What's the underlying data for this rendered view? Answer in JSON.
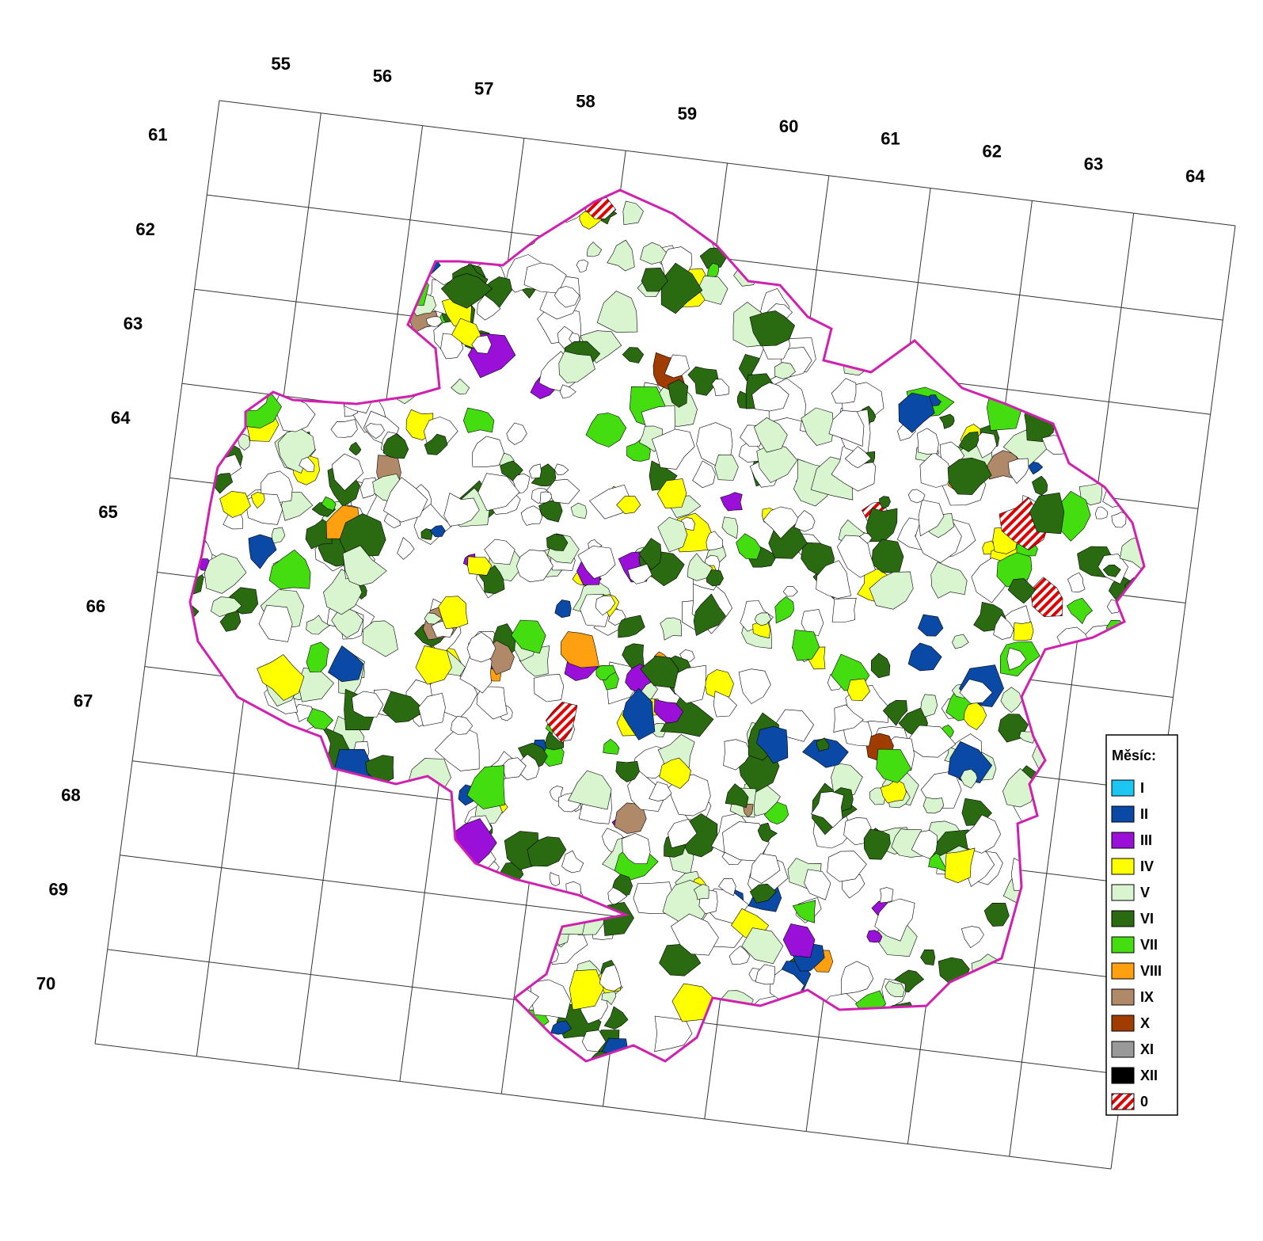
{
  "map": {
    "column_labels": [
      55,
      56,
      57,
      58,
      59,
      60,
      61,
      62,
      63,
      64
    ],
    "row_labels": [
      61,
      62,
      63,
      64,
      65,
      66,
      67,
      68,
      69,
      70
    ],
    "legend": {
      "title": "Měsíc:",
      "items": [
        {
          "label": "I",
          "color": "#1cc6f2"
        },
        {
          "label": "II",
          "color": "#0a4aa6"
        },
        {
          "label": "III",
          "color": "#9a10d8"
        },
        {
          "label": "IV",
          "color": "#ffff00"
        },
        {
          "label": "V",
          "color": "#d8f5d0"
        },
        {
          "label": "VI",
          "color": "#2a6a10"
        },
        {
          "label": "VII",
          "color": "#44dd10"
        },
        {
          "label": "VIII",
          "color": "#ffa010"
        },
        {
          "label": "IX",
          "color": "#b08a68"
        },
        {
          "label": "X",
          "color": "#a03c00"
        },
        {
          "label": "XI",
          "color": "#999999"
        },
        {
          "label": "XII",
          "color": "#000000"
        },
        {
          "label": "0",
          "color": "#e00000",
          "hatch": true
        }
      ]
    }
  }
}
